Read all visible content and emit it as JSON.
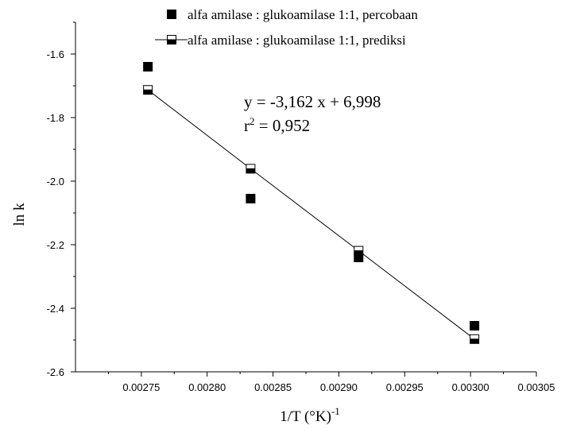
{
  "chart_data": {
    "type": "scatter",
    "xlabel": "1/T (°K)",
    "xlabel_superscript": "-1",
    "ylabel": "ln k",
    "xlim": [
      0.0027,
      0.00305
    ],
    "ylim": [
      -2.6,
      -1.5
    ],
    "x_ticks": [
      "0.00275",
      "0.00280",
      "0.00285",
      "0.00290",
      "0.00295",
      "0.00300",
      "0.00305"
    ],
    "y_ticks": [
      "-1.6",
      "-1.8",
      "-2.0",
      "-2.2",
      "-2.4",
      "-2.6"
    ],
    "grid": false,
    "legend_position": "top",
    "series": [
      {
        "name": "alfa amilase : glukoamilase 1:1, percobaan",
        "marker": "filled-square",
        "line": false,
        "x": [
          0.002755,
          0.002833,
          0.002915,
          0.003003
        ],
        "y": [
          -1.64,
          -2.055,
          -2.24,
          -2.455
        ]
      },
      {
        "name": "alfa amilase : glukoamilase 1:1, prediksi",
        "marker": "half-filled-square",
        "line": true,
        "x": [
          0.002755,
          0.002833,
          0.002915,
          0.003003
        ],
        "y": [
          -1.713,
          -1.961,
          -2.219,
          -2.497
        ]
      }
    ],
    "annotation": {
      "equation": "y = -3,162 x + 6,998",
      "r2_prefix": "r",
      "r2_sup": "2",
      "r2_value": " = 0,952"
    }
  }
}
